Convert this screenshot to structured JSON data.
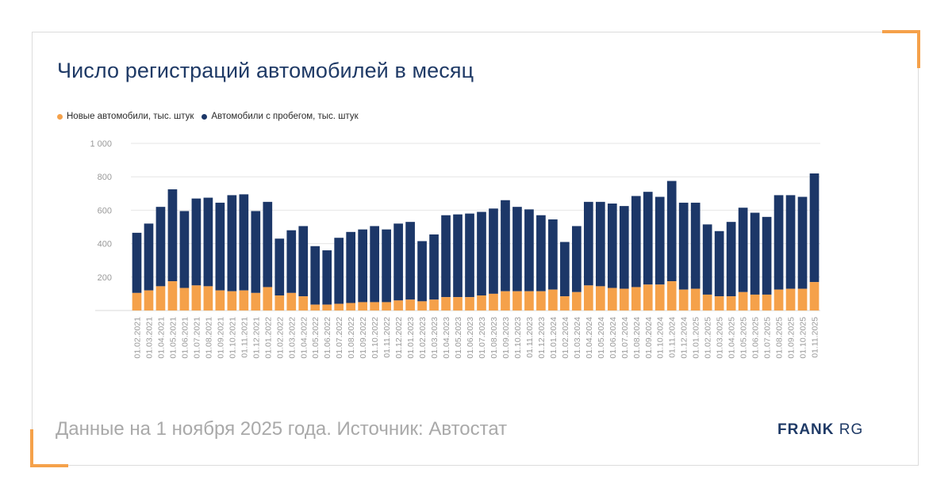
{
  "title": "Число регистраций автомобилей в месяц",
  "legend": {
    "new_label": "Новые автомобили, тыс. штук",
    "used_label": "Автомобили с пробегом, тыс. штук"
  },
  "footer_note": "Данные на 1 ноября 2025 года. Источник: Автостат",
  "logo": {
    "part1": "FRANK",
    "part2": "RG"
  },
  "colors": {
    "new": "#f5a14a",
    "used": "#1c3768",
    "grid": "#e6e6e6",
    "tick_text": "#9a9a9a",
    "accent": "#f5a14a"
  },
  "chart_data": {
    "type": "bar",
    "stacked": true,
    "title": "Число регистраций автомобилей в месяц",
    "xlabel": "",
    "ylabel": "",
    "ylim": [
      0,
      1000
    ],
    "yticks": [
      200,
      400,
      600,
      800,
      1000
    ],
    "ytick_labels": [
      "200",
      "400",
      "600",
      "800",
      "1 000"
    ],
    "grid": true,
    "legend_position": "top-left",
    "categories": [
      "01.02.2021",
      "01.03.2021",
      "01.04.2021",
      "01.05.2021",
      "01.06.2021",
      "01.07.2021",
      "01.08.2021",
      "01.09.2021",
      "01.10.2021",
      "01.11.2021",
      "01.12.2021",
      "01.01.2022",
      "01.02.2022",
      "01.03.2022",
      "01.04.2022",
      "01.05.2022",
      "01.06.2022",
      "01.07.2022",
      "01.08.2022",
      "01.09.2022",
      "01.10.2022",
      "01.11.2022",
      "01.12.2022",
      "01.01.2023",
      "01.02.2023",
      "01.03.2023",
      "01.04.2023",
      "01.05.2023",
      "01.06.2023",
      "01.07.2023",
      "01.08.2023",
      "01.09.2023",
      "01.10.2023",
      "01.11.2023",
      "01.12.2023",
      "01.01.2024",
      "01.02.2024",
      "01.03.2024",
      "01.04.2024",
      "01.05.2024",
      "01.06.2024",
      "01.07.2024",
      "01.08.2024",
      "01.09.2024",
      "01.10.2024",
      "01.11.2024",
      "01.12.2024",
      "01.01.2025",
      "01.02.2025",
      "01.03.2025",
      "01.04.2025",
      "01.05.2025",
      "01.06.2025",
      "01.07.2025",
      "01.08.2025",
      "01.09.2025",
      "01.10.2025",
      "01.11.2025"
    ],
    "series": [
      {
        "name": "Новые автомобили, тыс. штук",
        "values": [
          105,
          120,
          145,
          175,
          135,
          150,
          145,
          120,
          115,
          120,
          105,
          140,
          90,
          105,
          85,
          35,
          35,
          40,
          45,
          50,
          50,
          50,
          60,
          65,
          55,
          65,
          80,
          80,
          80,
          90,
          100,
          115,
          115,
          115,
          115,
          125,
          85,
          110,
          150,
          145,
          135,
          130,
          140,
          155,
          155,
          175,
          125,
          130,
          95,
          85,
          85,
          110,
          95,
          95,
          125,
          130,
          130,
          170
        ]
      },
      {
        "name": "Автомобили с пробегом, тыс. штук",
        "values": [
          360,
          400,
          475,
          550,
          460,
          520,
          530,
          525,
          575,
          575,
          490,
          510,
          340,
          375,
          420,
          350,
          325,
          395,
          425,
          435,
          455,
          435,
          460,
          465,
          360,
          390,
          490,
          495,
          500,
          500,
          510,
          545,
          505,
          490,
          455,
          420,
          325,
          395,
          500,
          505,
          505,
          495,
          545,
          555,
          525,
          600,
          520,
          515,
          420,
          390,
          445,
          505,
          490,
          465,
          565,
          560,
          550,
          650
        ]
      }
    ]
  }
}
